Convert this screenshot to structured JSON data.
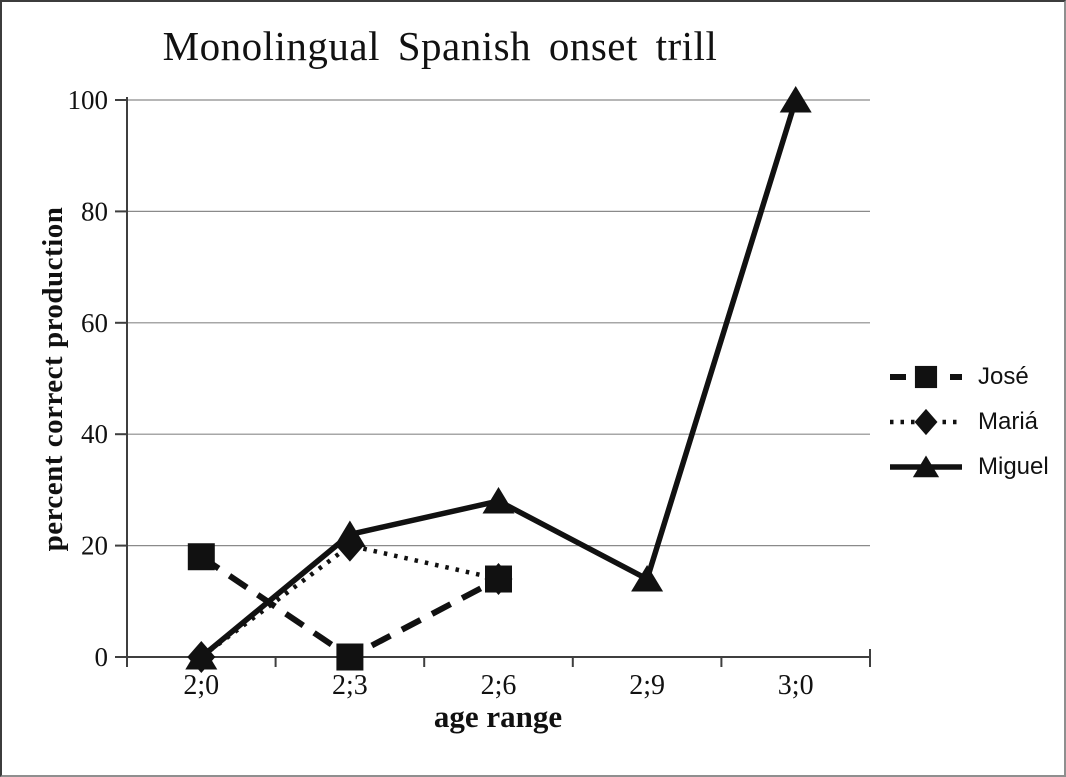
{
  "chart_data": {
    "type": "line",
    "title": "Monolingual Spanish onset trill",
    "xlabel": "age range",
    "ylabel": "percent correct production",
    "categories": [
      "2;0",
      "2;3",
      "2;6",
      "2;9",
      "3;0"
    ],
    "y_ticks": [
      0,
      20,
      40,
      60,
      80,
      100
    ],
    "ylim": [
      0,
      100
    ],
    "grid": "horizontal",
    "legend_position": "right",
    "series": [
      {
        "name": "José",
        "line": "dashed",
        "marker": "square",
        "values": [
          18,
          0,
          14,
          null,
          null
        ]
      },
      {
        "name": "Mariá",
        "line": "dotted",
        "marker": "diamond",
        "values": [
          0,
          20,
          14,
          null,
          null
        ]
      },
      {
        "name": "Miguel",
        "line": "solid",
        "marker": "triangle",
        "values": [
          0,
          22,
          28,
          14,
          100
        ]
      }
    ],
    "colors": {
      "series": "#111111",
      "gridline": "#8a8a8a",
      "axis": "#3f3f3f",
      "text": "#111111",
      "background": "#ffffff"
    }
  }
}
